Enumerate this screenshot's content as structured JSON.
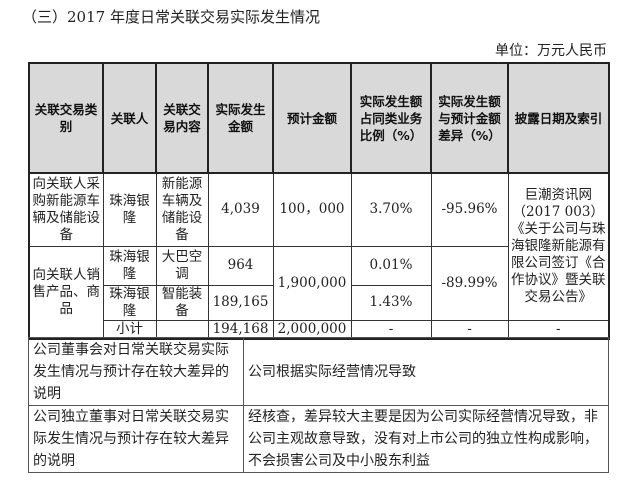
{
  "title": "（三）2017 年度日常关联交易实际发生情况",
  "unit": "单位：万元人民币",
  "headers": [
    "关联交易类别",
    "关联人",
    "关联交易内容",
    "实际发生金额",
    "预计金额",
    "实际发生额占同类业务比例（%）",
    "实际发生额与预计金额差异（%）",
    "披露日期及索引"
  ],
  "rows": {
    "purchase": {
      "category": "向关联人采购新能源车辆及储能设备",
      "party": "珠海银隆",
      "content": "新能源车辆及储能设备",
      "actual": "4,039",
      "estimate": "100，000",
      "ratio": "3.70%",
      "diff": "-95.96%"
    },
    "disclosure": "巨潮资讯网（2017 003）《关于公司与珠海银隆新能源有限公司签订《合作协议》暨关联交易公告》",
    "sales_category": "向关联人销售产品、商品",
    "sales": [
      {
        "party": "珠海银隆",
        "content": "大巴空调",
        "actual": "964",
        "ratio": "0.01%"
      },
      {
        "party": "珠海银隆",
        "content": "智能装备",
        "actual": "189,165",
        "ratio": "1.43%"
      }
    ],
    "sales_estimate": "1,900,000",
    "sales_diff": "-89.99%",
    "subtotal": {
      "label": "小计",
      "actual": "194,168",
      "estimate": "2,000,000",
      "ratio": "-",
      "diff": "-",
      "disclosure": "-"
    }
  },
  "notes": [
    {
      "label": "公司董事会对日常关联交易实际发生情况与预计存在较大差异的说明",
      "text": "公司根据实际经营情况导致"
    },
    {
      "label": "公司独立董事对日常关联交易实际发生情况与预计存在较大差异的说明",
      "text": "经核查，差异较大主要是因为公司实际经营情况导致，非公司主观故意导致，没有对上市公司的独立性构成影响，不会损害公司及中小股东利益"
    }
  ]
}
